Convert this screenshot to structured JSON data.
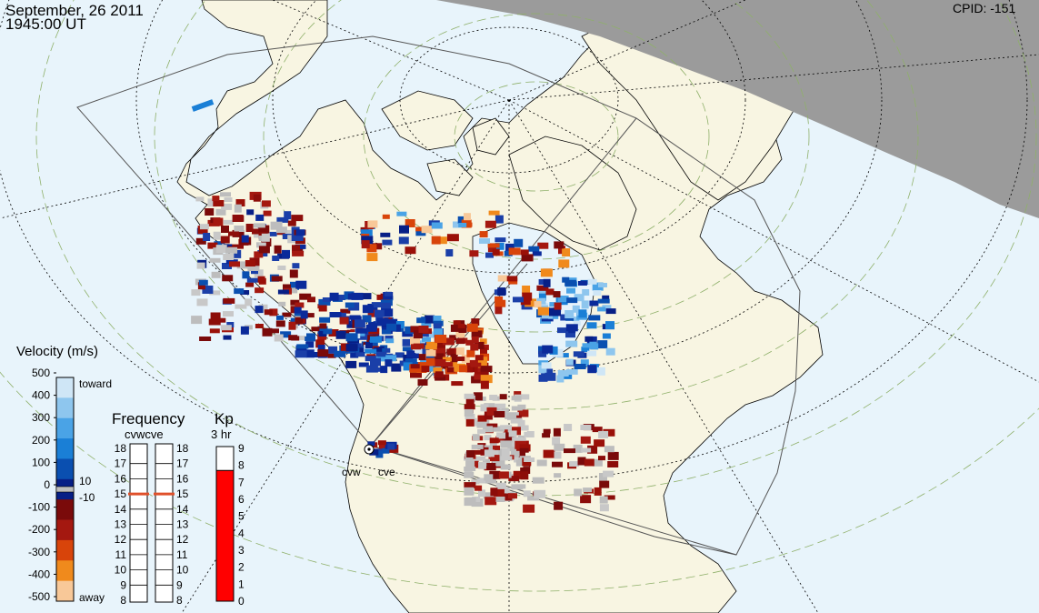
{
  "header": {
    "date": "September, 26 2011",
    "time": "1945:00 UT",
    "cpid_label": "CPID:",
    "cpid_value": "-151"
  },
  "radars": [
    {
      "code": "cvw"
    },
    {
      "code": "cve"
    }
  ],
  "velocity_scale": {
    "title": "Velocity (m/s)",
    "ticks": [
      "500",
      "400",
      "300",
      "200",
      "100",
      "0",
      "-100",
      "-200",
      "-300",
      "-400",
      "-500"
    ],
    "toward_label": "toward",
    "away_label": "away",
    "threshold_pos": "10",
    "threshold_neg": "-10",
    "colors": [
      "#cfe6f6",
      "#8ec6ee",
      "#4aa3e6",
      "#1a7fd6",
      "#0a4fb0",
      "#071f86",
      "#7a0a0a",
      "#a41810",
      "#d8440a",
      "#f08a1c",
      "#f8c898"
    ]
  },
  "frequency_scale": {
    "title": "Frequency",
    "radar_labels": "cvwcve",
    "ticks": [
      "18",
      "17",
      "16",
      "15",
      "14",
      "13",
      "12",
      "11",
      "10",
      "9",
      "8"
    ],
    "cvw_mhz": 15,
    "cve_mhz": 15
  },
  "kp_scale": {
    "title": "Kp",
    "subtitle": "3 hr",
    "ticks": [
      "9",
      "8",
      "7",
      "6",
      "5",
      "4",
      "3",
      "2",
      "1",
      "0"
    ],
    "value": 7.7,
    "fill_color": "#ff0000"
  },
  "colors": {
    "ocean": "#e8f4fb",
    "land": "#f8f5e2",
    "night": "#9b9b9b",
    "ground_scatter": "#c8c8c8"
  }
}
